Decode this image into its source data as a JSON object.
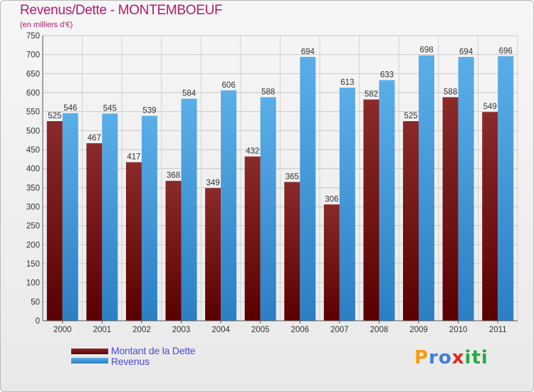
{
  "title": "Revenus/Dette - MONTEMBOEUF",
  "subtitle": "(en milliers d'€)",
  "logo": {
    "text": "Proxiti",
    "letters": [
      "P",
      "r",
      "o",
      "x",
      "i",
      "t",
      "i"
    ],
    "colors": [
      "#f39c12",
      "#3d7fd6",
      "#3d7fd6",
      "#e0281e",
      "#2aa84a",
      "#2aa84a",
      "#2aa84a"
    ]
  },
  "colors": {
    "dette": "#7a1212",
    "revenus": "#4aa3e8",
    "title": "#b5186f",
    "axis_text": "#333333"
  },
  "chart_data": {
    "type": "bar",
    "title": "Revenus/Dette - MONTEMBOEUF",
    "subtitle": "(en milliers d'€)",
    "categories": [
      "2000",
      "2001",
      "2002",
      "2003",
      "2004",
      "2005",
      "2006",
      "2007",
      "2008",
      "2009",
      "2010",
      "2011"
    ],
    "series": [
      {
        "name": "Montant de la Dette",
        "values": [
          525,
          467,
          417,
          368,
          349,
          432,
          365,
          306,
          582,
          525,
          588,
          549
        ]
      },
      {
        "name": "Revenus",
        "values": [
          546,
          545,
          539,
          584,
          606,
          588,
          694,
          613,
          633,
          698,
          694,
          696
        ]
      }
    ],
    "ylim": [
      0,
      750
    ],
    "yticks": [
      0,
      50,
      100,
      150,
      200,
      250,
      300,
      350,
      400,
      450,
      500,
      550,
      600,
      650,
      700,
      750
    ],
    "grid": true,
    "legend": "bottom-left"
  }
}
